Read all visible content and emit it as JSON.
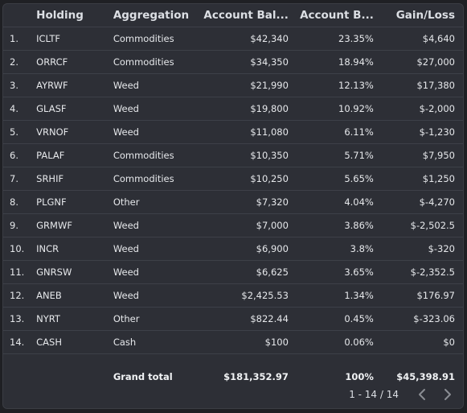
{
  "table": {
    "headers": {
      "index": "",
      "holding": "Holding",
      "aggregation": "Aggregation",
      "account_balance": "Account Bal...",
      "account_pct": "Account B...",
      "gain_loss": "Gain/Loss"
    },
    "rows": [
      {
        "index": "1.",
        "holding": "ICLTF",
        "aggregation": "Commodities",
        "balance": "$42,340",
        "pct": "23.35%",
        "gain": "$4,640"
      },
      {
        "index": "2.",
        "holding": "ORRCF",
        "aggregation": "Commodities",
        "balance": "$34,350",
        "pct": "18.94%",
        "gain": "$27,000"
      },
      {
        "index": "3.",
        "holding": "AYRWF",
        "aggregation": "Weed",
        "balance": "$21,990",
        "pct": "12.13%",
        "gain": "$17,380"
      },
      {
        "index": "4.",
        "holding": "GLASF",
        "aggregation": "Weed",
        "balance": "$19,800",
        "pct": "10.92%",
        "gain": "$-2,000"
      },
      {
        "index": "5.",
        "holding": "VRNOF",
        "aggregation": "Weed",
        "balance": "$11,080",
        "pct": "6.11%",
        "gain": "$-1,230"
      },
      {
        "index": "6.",
        "holding": "PALAF",
        "aggregation": "Commodities",
        "balance": "$10,350",
        "pct": "5.71%",
        "gain": "$7,950"
      },
      {
        "index": "7.",
        "holding": "SRHIF",
        "aggregation": "Commodities",
        "balance": "$10,250",
        "pct": "5.65%",
        "gain": "$1,250"
      },
      {
        "index": "8.",
        "holding": "PLGNF",
        "aggregation": "Other",
        "balance": "$7,320",
        "pct": "4.04%",
        "gain": "$-4,270"
      },
      {
        "index": "9.",
        "holding": "GRMWF",
        "aggregation": "Weed",
        "balance": "$7,000",
        "pct": "3.86%",
        "gain": "$-2,502.5"
      },
      {
        "index": "10.",
        "holding": "INCR",
        "aggregation": "Weed",
        "balance": "$6,900",
        "pct": "3.8%",
        "gain": "$-320"
      },
      {
        "index": "11.",
        "holding": "GNRSW",
        "aggregation": "Weed",
        "balance": "$6,625",
        "pct": "3.65%",
        "gain": "$-2,352.5"
      },
      {
        "index": "12.",
        "holding": "ANEB",
        "aggregation": "Weed",
        "balance": "$2,425.53",
        "pct": "1.34%",
        "gain": "$176.97"
      },
      {
        "index": "13.",
        "holding": "NYRT",
        "aggregation": "Other",
        "balance": "$822.44",
        "pct": "0.45%",
        "gain": "$-323.06"
      },
      {
        "index": "14.",
        "holding": "CASH",
        "aggregation": "Cash",
        "balance": "$100",
        "pct": "0.06%",
        "gain": "$0"
      }
    ],
    "totals": {
      "label": "Grand total",
      "balance": "$181,352.97",
      "pct": "100%",
      "gain": "$45,398.91"
    }
  },
  "pagination": {
    "range_text": "1 - 14 / 14",
    "prev_icon": "chevron-left-icon",
    "next_icon": "chevron-right-icon"
  },
  "colors": {
    "background": "#1f2024",
    "panel": "#2d2f36",
    "row_divider": "#3d4048",
    "text": "#e8eaed",
    "pager_icon": "#8a8d93"
  }
}
